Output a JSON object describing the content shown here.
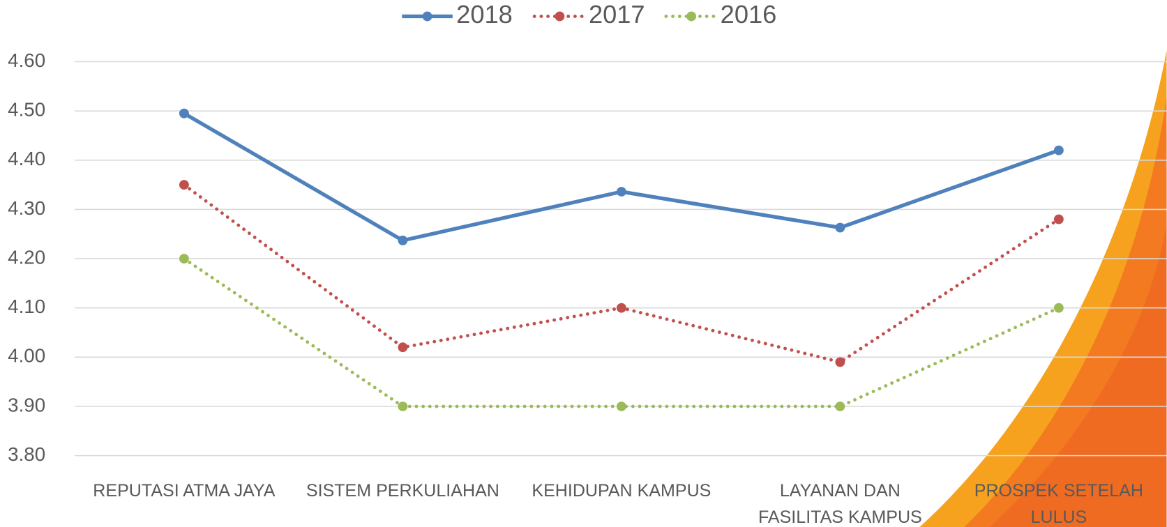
{
  "chart_data": {
    "type": "line",
    "categories": [
      "REPUTASI ATMA JAYA",
      "SISTEM PERKULIAHAN",
      "KEHIDUPAN KAMPUS",
      "LAYANAN DAN FASILITAS KAMPUS",
      "PROSPEK SETELAH LULUS"
    ],
    "series": [
      {
        "name": "2018",
        "color": "#4f81bd",
        "values": [
          4.495,
          4.237,
          4.336,
          4.263,
          4.42
        ]
      },
      {
        "name": "2017",
        "color": "#c0504d",
        "values": [
          4.35,
          4.02,
          4.1,
          3.99,
          4.28
        ]
      },
      {
        "name": "2016",
        "color": "#9bbb59",
        "values": [
          4.2,
          3.9,
          3.9,
          3.9,
          4.1
        ]
      }
    ],
    "ylim": [
      3.8,
      4.6
    ],
    "yticks": [
      {
        "value": 3.8,
        "label": "3.80"
      },
      {
        "value": 3.9,
        "label": "3.90"
      },
      {
        "value": 4.0,
        "label": "4.00"
      },
      {
        "value": 4.1,
        "label": "4.10"
      },
      {
        "value": 4.2,
        "label": "4.20"
      },
      {
        "value": 4.3,
        "label": "4.30"
      },
      {
        "value": 4.4,
        "label": "4.40"
      },
      {
        "value": 4.5,
        "label": "4.50"
      },
      {
        "value": 4.6,
        "label": "4.60"
      }
    ],
    "grid": true
  }
}
